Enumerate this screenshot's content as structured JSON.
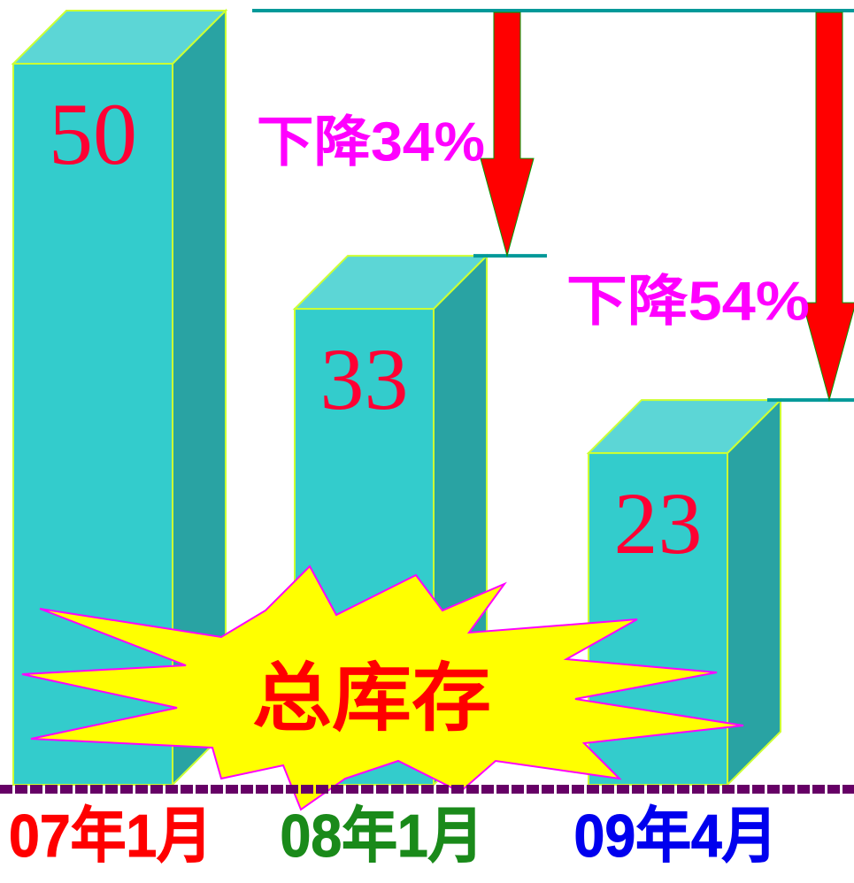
{
  "chart_data": {
    "type": "bar3d",
    "categories": [
      "07年1月",
      "08年1月",
      "09年4月"
    ],
    "category_colors": [
      "#ff0000",
      "#1a8a1a",
      "#0000ee"
    ],
    "values": [
      50,
      33,
      23
    ],
    "color": "#33cccc",
    "value_label_color": "#ff0033",
    "ylim": [
      0,
      50
    ],
    "annotations": [
      "下降34%",
      "下降54%"
    ],
    "annotation_color": "#ff00ff",
    "badge": "总库存"
  }
}
